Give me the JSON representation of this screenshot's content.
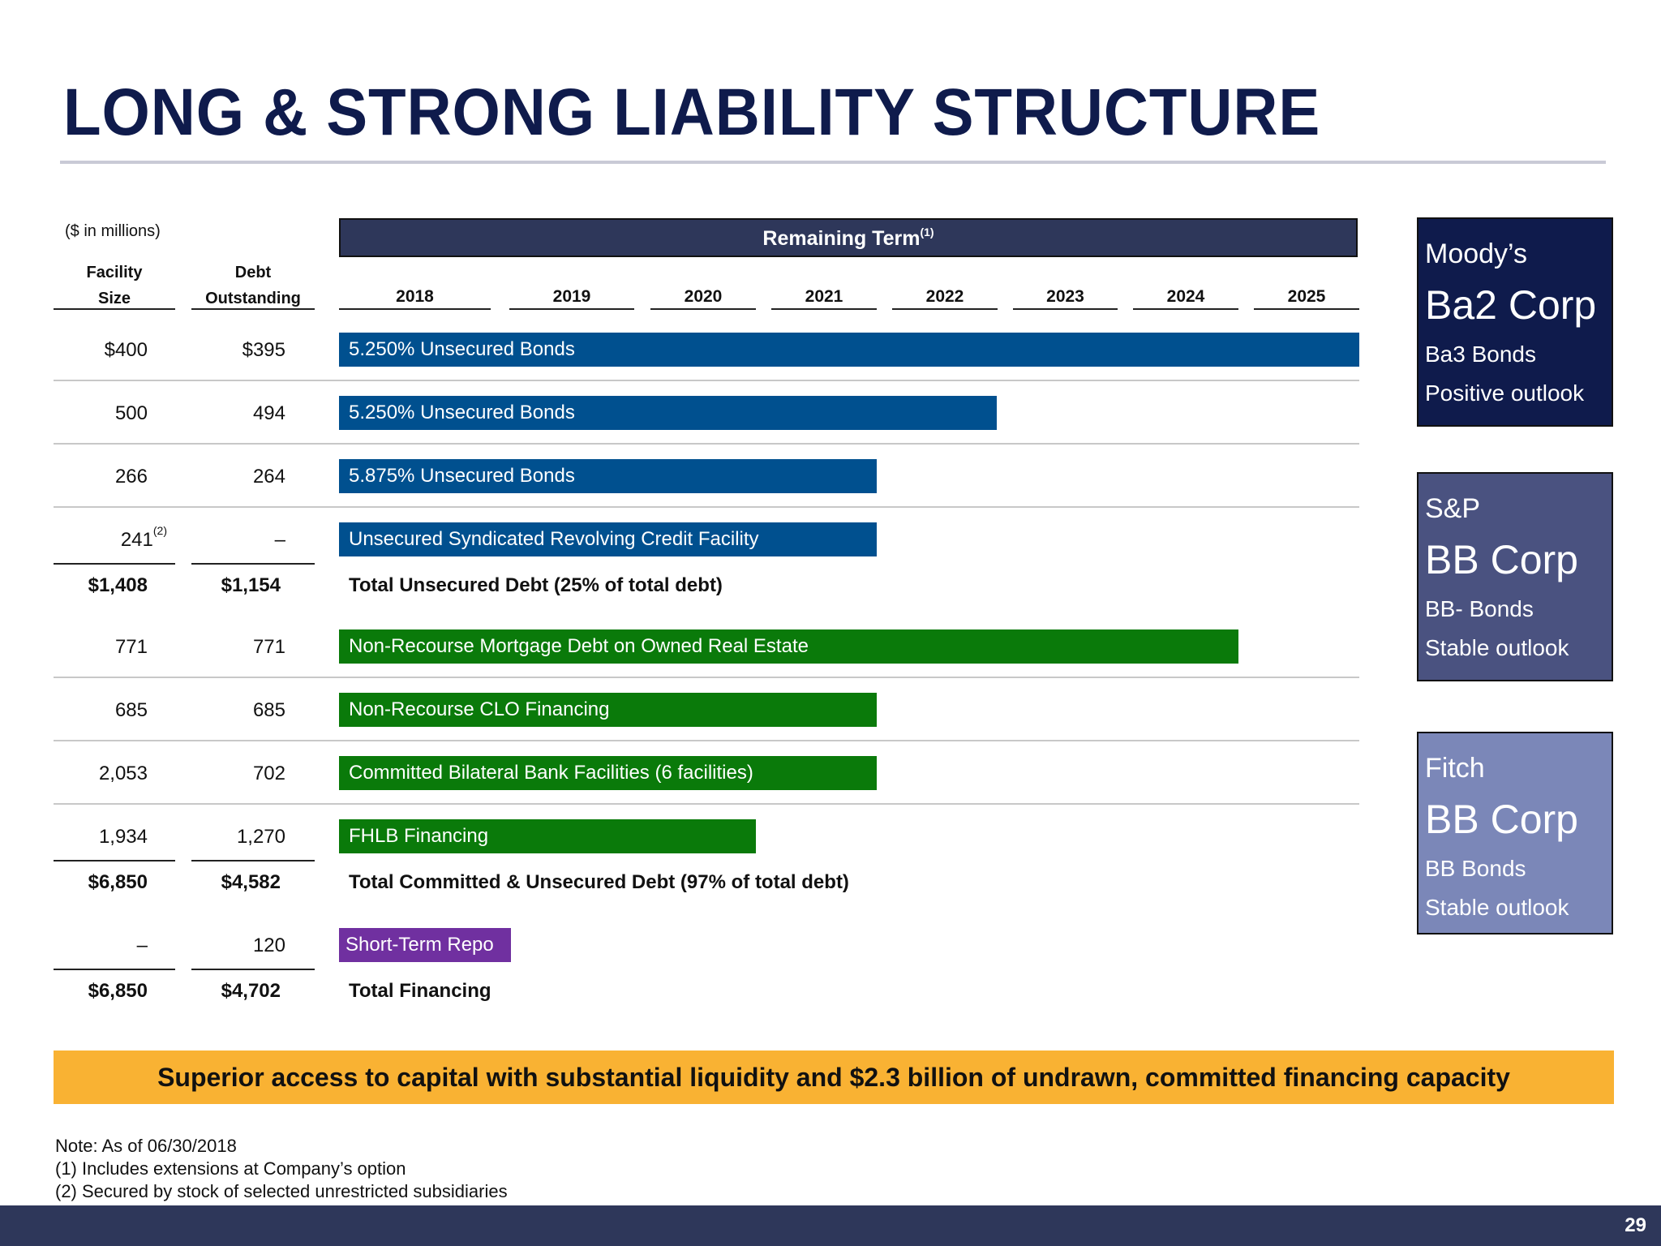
{
  "title": "LONG & STRONG LIABILITY STRUCTURE",
  "units_note": "($ in millions)",
  "col_headers": {
    "facility_line1": "Facility",
    "facility_line2": "Size",
    "debt_line1": "Debt",
    "debt_line2": "Outstanding"
  },
  "term_header": {
    "label": "Remaining Term",
    "footnote_ref": "(1)"
  },
  "years": [
    "2018",
    "2019",
    "2020",
    "2021",
    "2022",
    "2023",
    "2024",
    "2025"
  ],
  "rows": [
    {
      "facility": "$400",
      "debt": "$395",
      "label": "5.250% Unsecured Bonds",
      "color": "#00508f"
    },
    {
      "facility": "500",
      "debt": "494",
      "label": "5.250% Unsecured Bonds",
      "color": "#00508f"
    },
    {
      "facility": "266",
      "debt": "264",
      "label": "5.875% Unsecured Bonds",
      "color": "#00508f"
    },
    {
      "facility": "241",
      "facility_note": "(2)",
      "debt": "–",
      "label": "Unsecured Syndicated Revolving Credit Facility",
      "color": "#00508f"
    },
    {
      "facility": "771",
      "debt": "771",
      "label": "Non-Recourse Mortgage Debt on Owned Real Estate",
      "color": "#0a7a0a"
    },
    {
      "facility": "685",
      "debt": "685",
      "label": "Non-Recourse CLO Financing",
      "color": "#0a7a0a"
    },
    {
      "facility": "2,053",
      "debt": "702",
      "label": "Committed Bilateral Bank Facilities (6 facilities)",
      "color": "#0a7a0a"
    },
    {
      "facility": "1,934",
      "debt": "1,270",
      "label": "FHLB Financing",
      "color": "#0a7a0a"
    },
    {
      "facility": "–",
      "debt": "120",
      "label": "Short-Term Repo",
      "color": "#7030a0"
    }
  ],
  "totals": [
    {
      "facility": "$1,408",
      "debt": "$1,154",
      "label": "Total Unsecured Debt  (25% of total debt)"
    },
    {
      "facility": "$6,850",
      "debt": "$4,582",
      "label": "Total Committed & Unsecured Debt  (97% of total debt)"
    },
    {
      "facility": "$6,850",
      "debt": "$4,702",
      "label": "Total Financing"
    }
  ],
  "ratings": [
    {
      "agency": "Moody’s",
      "corp": "Ba2 Corp",
      "bonds": "Ba3 Bonds",
      "outlook": "Positive outlook",
      "color": "#0f1b4c"
    },
    {
      "agency": "S&P",
      "corp": "BB Corp",
      "bonds": "BB- Bonds",
      "outlook": "Stable outlook",
      "color": "#4a5280"
    },
    {
      "agency": "Fitch",
      "corp": "BB Corp",
      "bonds": "BB Bonds",
      "outlook": "Stable outlook",
      "color": "#7b87b8"
    }
  ],
  "banner": "Superior access to capital with substantial liquidity and $2.3 billion of undrawn, committed financing capacity",
  "footnotes": [
    "Note: As of 06/30/2018",
    "(1) Includes extensions at Company’s option",
    "(2) Secured by stock of selected unrestricted subsidiaries"
  ],
  "page_number": "29"
}
